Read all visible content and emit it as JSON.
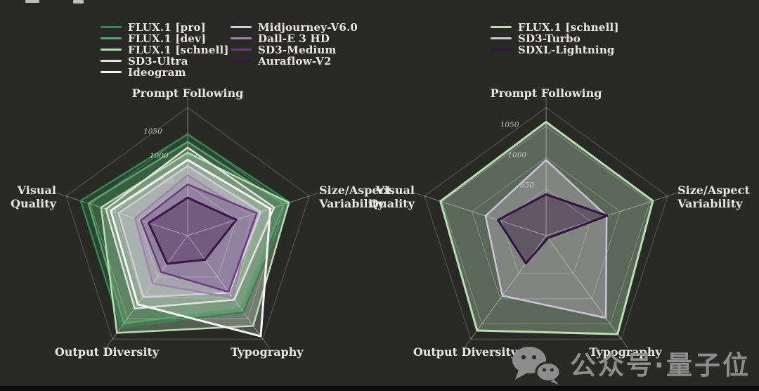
{
  "page": {
    "background_color": "#292928",
    "bottom_bar_color": "#0d0d0d"
  },
  "watermark": {
    "icon": "wechat-icon",
    "text": "公众号·量子位",
    "color": "#8d8d8d"
  },
  "chart_data": [
    {
      "type": "radar",
      "position": "left",
      "title": "",
      "axes": [
        "Prompt Following",
        "Size/Aspect Variability",
        "Typography",
        "Output Diversity",
        "Visual Quality"
      ],
      "r_min": 850,
      "r_max": 1100,
      "grid": true,
      "legend_position": "top",
      "ticks": [
        {
          "value": 1050,
          "label": "1050"
        },
        {
          "value": 1000,
          "label": "1000"
        },
        {
          "value": 950,
          "label": "950"
        }
      ],
      "legend_columns": [
        [
          0,
          1,
          2,
          3,
          4
        ],
        [
          5,
          6,
          7,
          8
        ]
      ],
      "series": [
        {
          "name": "FLUX.1 [pro]",
          "color": "#35854e",
          "stroke_width": 2.5,
          "fill_opacity": 0.3,
          "values": [
            1048,
            1060,
            1035,
            1072,
            1070
          ]
        },
        {
          "name": "FLUX.1 [dev]",
          "color": "#58a569",
          "stroke_width": 2.5,
          "fill_opacity": 0.28,
          "values": [
            1033,
            1048,
            1026,
            1062,
            1054
          ]
        },
        {
          "name": "FLUX.1 [schnell]",
          "color": "#b7dfb2",
          "stroke_width": 2.5,
          "fill_opacity": 0.3,
          "values": [
            1012,
            1058,
            1068,
            1085,
            1028
          ]
        },
        {
          "name": "SD3-Ultra",
          "color": "#e3e3e1",
          "stroke_width": 2.5,
          "fill_opacity": 0.2,
          "values": [
            1022,
            1028,
            1005,
            1026,
            1018
          ]
        },
        {
          "name": "Ideogram",
          "color": "#f7f6f3",
          "stroke_width": 3,
          "fill_opacity": 0.2,
          "values": [
            998,
            1020,
            1093,
            1016,
            1008
          ]
        },
        {
          "name": "Midjourney-V6.0",
          "color": "#d6cadf",
          "stroke_width": 2.5,
          "fill_opacity": 0.32,
          "values": [
            986,
            1000,
            988,
            998,
            992
          ]
        },
        {
          "name": "Dall-E 3 HD",
          "color": "#a182b3",
          "stroke_width": 2.5,
          "fill_opacity": 0.3,
          "values": [
            968,
            980,
            1000,
            966,
            958
          ]
        },
        {
          "name": "SD3-Medium",
          "color": "#6d3c80",
          "stroke_width": 2.5,
          "fill_opacity": 0.32,
          "values": [
            950,
            992,
            986,
            938,
            946
          ]
        },
        {
          "name": "Auraflow-V2",
          "color": "#3a1547",
          "stroke_width": 3,
          "fill_opacity": 0.35,
          "values": [
            924,
            950,
            908,
            918,
            930
          ]
        }
      ]
    },
    {
      "type": "radar",
      "position": "right",
      "title": "",
      "axes": [
        "Prompt Following",
        "Size/Aspect Variability",
        "Typography",
        "Output Diversity",
        "Visual Quality"
      ],
      "r_min": 875,
      "r_max": 1080,
      "grid": true,
      "legend_position": "top",
      "ticks": [
        {
          "value": 1050,
          "label": "1050"
        },
        {
          "value": 1000,
          "label": "1000"
        },
        {
          "value": 950,
          "label": "950"
        }
      ],
      "legend_columns": [
        [
          0,
          1,
          2
        ]
      ],
      "series": [
        {
          "name": "FLUX.1 [schnell]",
          "color": "#b7dfb2",
          "stroke_width": 3,
          "fill_opacity": 0.35,
          "values": [
            1057,
            1055,
            1070,
            1063,
            1053
          ]
        },
        {
          "name": "SD3-Turbo",
          "color": "#cfc3da",
          "stroke_width": 2.5,
          "fill_opacity": 0.32,
          "values": [
            996,
            977,
            1038,
            994,
            977
          ]
        },
        {
          "name": "SDXL-Lightning",
          "color": "#35123f",
          "stroke_width": 3,
          "fill_opacity": 0.4,
          "values": [
            941,
            978,
            880,
            930,
            956
          ]
        }
      ]
    }
  ]
}
